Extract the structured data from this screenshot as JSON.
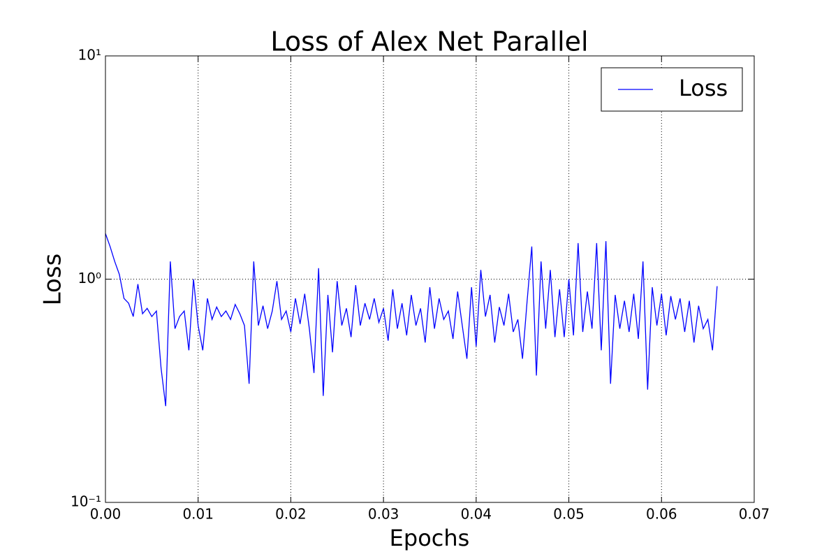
{
  "chart_data": {
    "type": "line",
    "title": "Loss of Alex Net Parallel",
    "x_label": "Epochs",
    "y_label": "Loss",
    "log_y": true,
    "grid": true,
    "legend": "upper right",
    "x": [
      0,
      0.0005,
      0.001,
      0.0015,
      0.002,
      0.0025,
      0.003,
      0.0035,
      0.004,
      0.0045,
      0.005,
      0.0055,
      0.006,
      0.0065,
      0.007,
      0.0075,
      0.008,
      0.0085,
      0.009,
      0.0095,
      0.01,
      0.0105,
      0.011,
      0.0115,
      0.012,
      0.0125,
      0.013,
      0.0135,
      0.014,
      0.0145,
      0.015,
      0.0155,
      0.016,
      0.0165,
      0.017,
      0.0175,
      0.018,
      0.0185,
      0.019,
      0.0195,
      0.02,
      0.0205,
      0.021,
      0.0215,
      0.022,
      0.0225,
      0.023,
      0.0235,
      0.024,
      0.0245,
      0.025,
      0.0255,
      0.026,
      0.0265,
      0.027,
      0.0275,
      0.028,
      0.0285,
      0.029,
      0.0295,
      0.03,
      0.0305,
      0.031,
      0.0315,
      0.032,
      0.0325,
      0.033,
      0.0335,
      0.034,
      0.0345,
      0.035,
      0.0355,
      0.036,
      0.0365,
      0.037,
      0.0375,
      0.038,
      0.0385,
      0.039,
      0.0395,
      0.04,
      0.0405,
      0.041,
      0.0415,
      0.042,
      0.0425,
      0.043,
      0.0435,
      0.044,
      0.0445,
      0.045,
      0.0455,
      0.046,
      0.0465,
      0.047,
      0.0475,
      0.048,
      0.0485,
      0.049,
      0.0495,
      0.05,
      0.0505,
      0.051,
      0.0515,
      0.052,
      0.0525,
      0.053,
      0.0535,
      0.054,
      0.0545,
      0.055,
      0.0555,
      0.056,
      0.0565,
      0.057,
      0.0575,
      0.058,
      0.0585,
      0.059,
      0.0595,
      0.06,
      0.0605,
      0.061,
      0.0615,
      0.062,
      0.0625,
      0.063,
      0.0635,
      0.064,
      0.0645,
      0.065,
      0.0655,
      0.066
    ],
    "series": [
      {
        "name": "Loss",
        "color": "#0000ff",
        "values": [
          1.6,
          1.4,
          1.2,
          1.05,
          0.82,
          0.78,
          0.68,
          0.95,
          0.7,
          0.74,
          0.68,
          0.72,
          0.4,
          0.27,
          1.2,
          0.6,
          0.68,
          0.72,
          0.48,
          1.0,
          0.62,
          0.48,
          0.82,
          0.66,
          0.75,
          0.68,
          0.72,
          0.66,
          0.77,
          0.7,
          0.62,
          0.34,
          1.2,
          0.62,
          0.76,
          0.6,
          0.72,
          0.98,
          0.66,
          0.72,
          0.58,
          0.82,
          0.63,
          0.86,
          0.6,
          0.38,
          1.12,
          0.3,
          0.85,
          0.47,
          0.98,
          0.62,
          0.74,
          0.55,
          0.94,
          0.62,
          0.78,
          0.66,
          0.82,
          0.64,
          0.74,
          0.53,
          0.9,
          0.6,
          0.78,
          0.56,
          0.85,
          0.62,
          0.74,
          0.52,
          0.92,
          0.6,
          0.82,
          0.66,
          0.72,
          0.54,
          0.88,
          0.62,
          0.44,
          0.92,
          0.5,
          1.1,
          0.68,
          0.85,
          0.52,
          0.75,
          0.62,
          0.86,
          0.58,
          0.66,
          0.44,
          0.8,
          1.4,
          0.37,
          1.2,
          0.6,
          1.1,
          0.55,
          0.9,
          0.55,
          1.0,
          0.56,
          1.45,
          0.58,
          0.88,
          0.6,
          1.45,
          0.48,
          1.48,
          0.34,
          0.85,
          0.6,
          0.8,
          0.58,
          0.86,
          0.54,
          1.2,
          0.32,
          0.92,
          0.62,
          0.86,
          0.56,
          0.84,
          0.66,
          0.82,
          0.58,
          0.8,
          0.52,
          0.76,
          0.6,
          0.66,
          0.48,
          0.93
        ]
      }
    ],
    "xlim": [
      0,
      0.07
    ],
    "xticks": [
      {
        "value": 0,
        "label": "0.00"
      },
      {
        "value": 0.01,
        "label": "0.01"
      },
      {
        "value": 0.02,
        "label": "0.02"
      },
      {
        "value": 0.03,
        "label": "0.03"
      },
      {
        "value": 0.04,
        "label": "0.04"
      },
      {
        "value": 0.05,
        "label": "0.05"
      },
      {
        "value": 0.06,
        "label": "0.06"
      },
      {
        "value": 0.07,
        "label": "0.07"
      }
    ],
    "ylim": [
      0.1,
      10
    ],
    "yticks": [
      {
        "value": 0.1,
        "label": "10⁻¹"
      },
      {
        "value": 1,
        "label": "10⁰"
      },
      {
        "value": 10,
        "label": "10¹"
      }
    ]
  }
}
